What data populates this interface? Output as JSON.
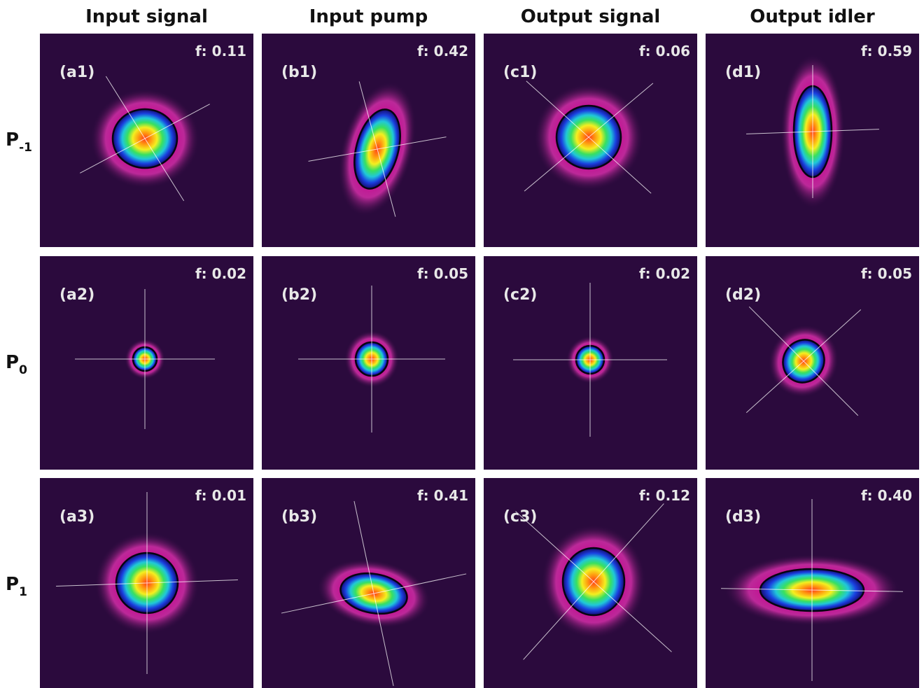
{
  "columns": [
    "Input signal",
    "Input pump",
    "Output signal",
    "Output idler"
  ],
  "rows": [
    {
      "base": "P",
      "sub": "-1"
    },
    {
      "base": "P",
      "sub": "0"
    },
    {
      "base": "P",
      "sub": "1"
    }
  ],
  "panels": [
    [
      {
        "label": "(a1)",
        "f": "f: 0.11"
      },
      {
        "label": "(b1)",
        "f": "f: 0.42"
      },
      {
        "label": "(c1)",
        "f": "f: 0.06"
      },
      {
        "label": "(d1)",
        "f": "f: 0.59"
      }
    ],
    [
      {
        "label": "(a2)",
        "f": "f: 0.02"
      },
      {
        "label": "(b2)",
        "f": "f: 0.05"
      },
      {
        "label": "(c2)",
        "f": "f: 0.02"
      },
      {
        "label": "(d2)",
        "f": "f: 0.05"
      }
    ],
    [
      {
        "label": "(a3)",
        "f": "f: 0.01"
      },
      {
        "label": "(b3)",
        "f": "f: 0.41"
      },
      {
        "label": "(c3)",
        "f": "f: 0.12"
      },
      {
        "label": "(d3)",
        "f": "f: 0.40"
      }
    ]
  ]
}
